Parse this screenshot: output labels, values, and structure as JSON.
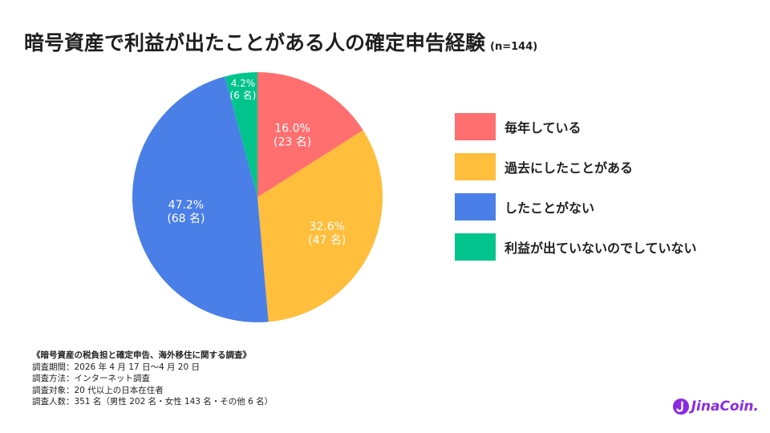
{
  "title": "暗号資産で利益が出たことがある人の確定申告経験",
  "sample": "(n=144)",
  "chart_data": {
    "type": "pie",
    "title": "暗号資産で利益が出たことがある人の確定申告経験",
    "slices": [
      {
        "name": "毎年している",
        "percent": 16.0,
        "count_label": "(23 名)",
        "value_label": "16.0%",
        "color": "#ff6f6f"
      },
      {
        "name": "過去にしたことがある",
        "percent": 32.6,
        "count_label": "(47 名)",
        "value_label": "32.6%",
        "color": "#ffbe3c"
      },
      {
        "name": "したことがない",
        "percent": 47.2,
        "count_label": "(68 名)",
        "value_label": "47.2%",
        "color": "#4a7fe8"
      },
      {
        "name": "利益が出ていないのでしていない",
        "percent": 4.2,
        "count_label": "(6 名)",
        "value_label": "4.2%",
        "color": "#00c48c"
      }
    ],
    "legend_position": "right"
  },
  "notes": {
    "heading": "《暗号資産の税負担と確定申告、海外移住に関する調査》",
    "lines": [
      "調査期間：2026 年 4 月 17 日〜4 月 20 日",
      "調査方法：インターネット調査",
      "調査対象：20 代以上の日本在住者",
      "調査人数：351 名（男性 202 名・女性 143 名・その他 6 名）"
    ]
  },
  "logo": {
    "text": "JinaCoin.",
    "color": "#8a2be2"
  }
}
